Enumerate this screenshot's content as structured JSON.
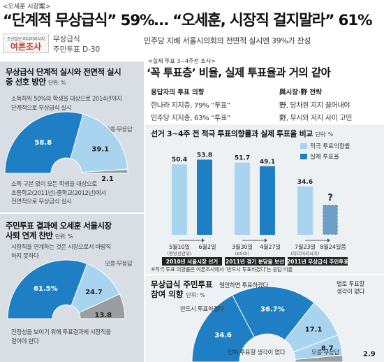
{
  "header": {
    "kicker": "<오세훈 시장案>",
    "headline_a": "“단계적 무상급식”",
    "headline_a_pct": "59%",
    "headline_sep": "… ",
    "headline_b": "“오세훈, 시장직 걸지말라”",
    "headline_b_pct": "61%",
    "logo_small": "조선일보 미디어리서치",
    "logo_big": "여론조사",
    "tag_line1": "무상급식",
    "tag_line2": "주민투표 D-30",
    "top_note": "민주당 지배 서울시의회의    전면적 실시엔 39%가 찬성"
  },
  "left_panel": {
    "q1": {
      "title_line1": "무상급식 단계적 실시와 전면적 실시",
      "title_line2": "중 선호 방안",
      "unit": "단위: %",
      "desc_line1": "소득하위 50%의 학생을 대상으로 2014년까지",
      "desc_line2": "단계적으로 무상급식 실시",
      "side_label": "모름·무응답",
      "foot_line1": "소득 구분 없이 모든 학생을 대상으로",
      "foot_line2": "초등학교(2011년)·중학교(2012년)에서",
      "foot_line3": "전면적으로 무상급식 실시"
    },
    "q2": {
      "title_line1": "주민투표 결과에 오세훈 서울시장",
      "title_line2": "사퇴 연계 찬반",
      "unit": "단위: %",
      "desc_line1": "시장직을 연계하는 것은 시장으로서 바람직",
      "desc_line2": "하지 못하다",
      "side_label": "모름·무응답",
      "foot_line1": "진정성을 보이기 위해 투표결과에 시장직을",
      "foot_line2": "걸어야 한다"
    }
  },
  "right_top": {
    "tag": "<실제 투표 3~4주전 조사>",
    "headline": "‘꼭 투표층’ 비율, 실제 투표율과 거의 같아",
    "col1_header": "응답자의 투표 의향",
    "col1_row1": "한나라 지지층, 79% “투표”",
    "col1_row2": "민주당 지지층, 63% “투표”",
    "col2_header": "與시장·野 전략",
    "col2_row1": "野, 당차원 지지 끌어내야",
    "col2_row2": "野, 무시와 저지 사이 고민"
  },
  "bar_chart": {
    "title": "선거 3~4주 전 적극 투표의향률과 실제 투표율 비교",
    "unit": "단위: %",
    "legend_survey": "적극 투표의향률",
    "legend_actual": "실제 투표율",
    "note": "※적극 투표 의향률은 여론조사에서 ‘반드시 투표하겠다’는 응답 비율",
    "question_mark": "?"
  },
  "bottom": {
    "title_line1": "무상급식 주민투표",
    "title_line2": "참여 의향",
    "unit": "단위: %",
    "lbl_prob_vote": "웬만하면 투표하겠다",
    "lbl_prob_not": "별로 투표할\n생각이 없다",
    "lbl_must_vote": "반드시 투표하겠다",
    "lbl_never": "전혀 투표할 생각이 없다",
    "lbl_dk": "모름·무응답"
  },
  "colors": {
    "dark_blue": "#1f7fc4",
    "light_blue": "#a9d4f0",
    "grey": "#9a9ea3",
    "panel": "#d9dee5"
  },
  "chart_data": [
    {
      "type": "pie",
      "title": "무상급식 단계적 실시와 전면적 실시 중 선호 방안",
      "unit": "%",
      "slices": [
        {
          "label": "소득하위 50%의 학생을 대상으로 2014년까지 단계적으로 무상급식 실시",
          "value": 58.8,
          "display": "58.8",
          "color": "#1f7fc4"
        },
        {
          "label": "소득 구분 없이 모든 학생을 대상으로 초등학교(2011년)·중학교(2012년)에서 전면적으로 무상급식 실시",
          "value": 39.1,
          "display": "39.1",
          "color": "#a9d4f0"
        },
        {
          "label": "모름·무응답",
          "value": 2.1,
          "display": "2.1",
          "color": "#9a9ea3"
        }
      ]
    },
    {
      "type": "pie",
      "title": "주민투표 결과에 오세훈 서울시장 사퇴 연계 찬반",
      "unit": "%",
      "slices": [
        {
          "label": "시장직을 연계하는 것은 시장으로서 바람직하지 못하다",
          "value": 61.5,
          "display": "61.5%",
          "color": "#1f7fc4"
        },
        {
          "label": "진정성을 보이기 위해 투표결과에 시장직을 걸어야 한다",
          "value": 24.7,
          "display": "24.7",
          "color": "#a9d4f0"
        },
        {
          "label": "모름·무응답",
          "value": 13.8,
          "display": "13.8",
          "color": "#9a9ea3"
        }
      ]
    },
    {
      "type": "bar",
      "title": "선거 3~4주 전 적극 투표의향률과 실제 투표율 비교",
      "unit": "%",
      "ylim": [
        0,
        60
      ],
      "groups": [
        {
          "caption": "2010년 서울시장 선거",
          "survey_date": "5월10일",
          "survey_org": "(중앙선관위)",
          "actual_date": "6월2일",
          "survey": 50.4,
          "actual": 53.8
        },
        {
          "caption": "2011년 경기 분당을 보선",
          "survey_date": "3월30일",
          "survey_org": "(KSOI)",
          "actual_date": "4월27일",
          "survey": 51.7,
          "actual": 49.1
        },
        {
          "caption": "2011년 무상급식 주민투표",
          "survey_date": "7월23일",
          "survey_org": "(미디어리서치)",
          "actual_date": "8월24일쯤",
          "survey": 34.6,
          "actual": null
        }
      ],
      "series": [
        {
          "name": "적극 투표의향률",
          "color": "#a9d4f0"
        },
        {
          "name": "실제 투표율",
          "color": "#1f7fc4"
        }
      ]
    },
    {
      "type": "pie",
      "title": "무상급식 주민투표 참여 의향",
      "unit": "%",
      "slices": [
        {
          "label": "반드시 투표하겠다",
          "value": 34.6,
          "display": "34.6",
          "color": "#1f7fc4"
        },
        {
          "label": "웬만하면 투표하겠다",
          "value": 36.7,
          "display": "36.7%",
          "color": "#1f7fc4"
        },
        {
          "label": "별로 투표할 생각이 없다",
          "value": 17.1,
          "display": "17.1",
          "color": "#a9d4f0"
        },
        {
          "label": "전혀 투표할 생각이 없다",
          "value": 8.7,
          "display": "8.7",
          "color": "#a9d4f0"
        },
        {
          "label": "모름·무응답",
          "value": 2.9,
          "display": "2.9",
          "color": "#9a9ea3"
        }
      ]
    }
  ]
}
